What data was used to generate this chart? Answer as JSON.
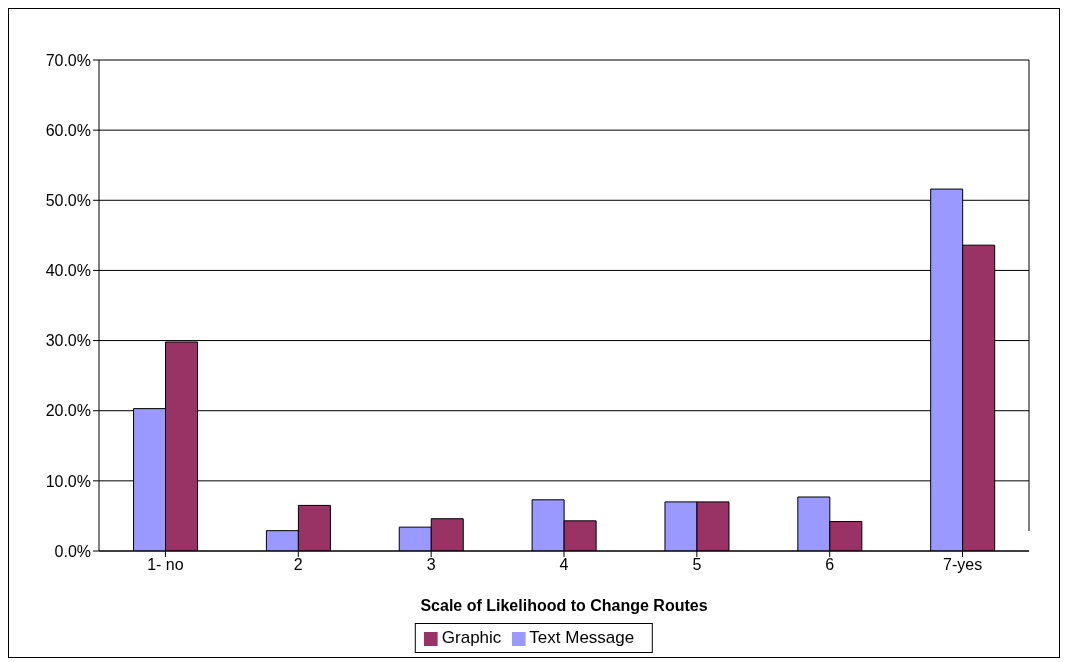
{
  "chart_data": {
    "type": "bar",
    "xlabel": "Scale of Likelihood to Change Routes",
    "categories": [
      "1- no",
      "2",
      "3",
      "4",
      "5",
      "6",
      "7-yes"
    ],
    "series": [
      {
        "name": "Text Message",
        "color": "#9999ff",
        "values": [
          20.3,
          2.9,
          3.4,
          7.3,
          7.0,
          7.7,
          51.6
        ]
      },
      {
        "name": "Graphic",
        "color": "#993366",
        "values": [
          29.8,
          6.5,
          4.6,
          4.3,
          7.0,
          4.2,
          43.6
        ]
      }
    ],
    "ylim": [
      0,
      70
    ],
    "yticks": [
      {
        "value": 0,
        "label": "0.0%"
      },
      {
        "value": 10,
        "label": "10.0%"
      },
      {
        "value": 20,
        "label": "20.0%"
      },
      {
        "value": 30,
        "label": "30.0%"
      },
      {
        "value": 40,
        "label": "40.0%"
      },
      {
        "value": 50,
        "label": "50.0%"
      },
      {
        "value": 60,
        "label": "60.0%"
      },
      {
        "value": 70,
        "label": "70.0%"
      }
    ],
    "grid": "y",
    "legend": "bottom"
  }
}
